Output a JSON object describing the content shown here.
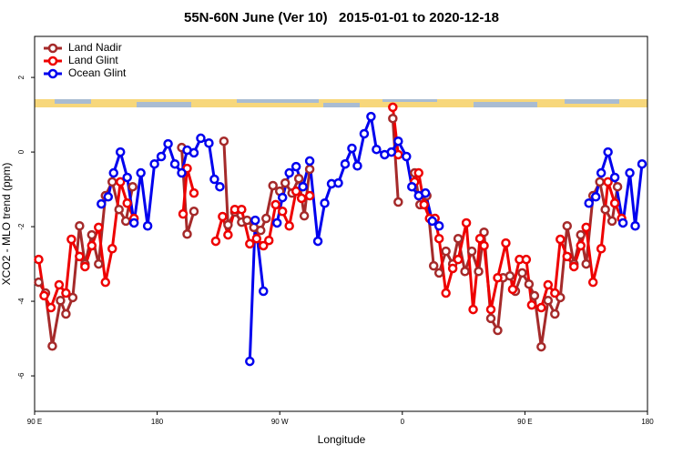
{
  "chart_data": {
    "type": "line",
    "title": "55N-60N June (Ver 10)   2015-01-01 to 2020-12-18",
    "x_label": "Longitude",
    "y_label": "XCO2 - MLO trend (ppm)",
    "xlim": [
      90,
      540
    ],
    "ylim": [
      -6.95,
      3.1
    ],
    "xticks": [
      {
        "value": 90,
        "label": "90 E"
      },
      180,
      {
        "value": 270,
        "label": "90 W"
      },
      {
        "value": 360,
        "label": "0"
      },
      {
        "value": 450,
        "label": "90 E"
      },
      {
        "value": 540,
        "label": "180"
      }
    ],
    "yticks": [
      -6,
      -4,
      -2,
      0,
      2
    ],
    "legend": "top-left",
    "series": [
      {
        "name": "Land Nadir",
        "color": "#a52a2a",
        "x": [
          93,
          98,
          103,
          109,
          113,
          118,
          123,
          127,
          132,
          137,
          142,
          147,
          152,
          157,
          162,
          null,
          198,
          202,
          207,
          null,
          229,
          232,
          237,
          242,
          246,
          251,
          256,
          260,
          265,
          270,
          274,
          279,
          284,
          288,
          292,
          null,
          353,
          357,
          null,
          369,
          373,
          378,
          383,
          387,
          392,
          397,
          401,
          406,
          411,
          416,
          420,
          425,
          430,
          434,
          439,
          443,
          448,
          453,
          457,
          462,
          467,
          472,
          476,
          481,
          486,
          491,
          495,
          500,
          505,
          509,
          514,
          518
        ],
        "values": [
          -3.49,
          -3.78,
          -5.2,
          -3.98,
          -4.34,
          -3.9,
          -1.98,
          -3.0,
          -2.22,
          -3.0,
          -1.17,
          -0.8,
          -1.54,
          -1.85,
          -0.93,
          null,
          0.12,
          -2.2,
          -1.59,
          null,
          0.29,
          -1.95,
          -1.61,
          -1.88,
          -1.83,
          -2.02,
          -2.1,
          -1.78,
          -0.9,
          -1.05,
          -0.83,
          -1.1,
          -0.71,
          -1.71,
          -0.46,
          null,
          0.9,
          -1.34,
          null,
          -0.56,
          -1.41,
          -1.17,
          -3.05,
          -3.24,
          -2.66,
          -3.0,
          -2.32,
          -3.2,
          -2.66,
          -3.2,
          -2.15,
          -4.46,
          -4.78,
          -3.37,
          -3.32,
          -3.73,
          -3.24,
          -3.54,
          -3.85,
          -5.22,
          -3.98,
          -4.34,
          -3.9,
          -1.98,
          -3.0,
          -2.22,
          -3.0,
          -1.17,
          -0.8,
          -1.54,
          -1.85,
          -0.93
        ]
      },
      {
        "name": "Land Glint",
        "color": "#ee0000",
        "x": [
          93,
          97,
          102,
          108,
          113,
          117,
          123,
          127,
          132,
          137,
          142,
          147,
          153,
          158,
          163,
          null,
          199,
          202,
          207,
          null,
          223,
          228,
          232,
          237,
          242,
          248,
          253,
          258,
          262,
          267,
          272,
          277,
          282,
          286,
          292,
          null,
          353,
          357,
          null,
          369,
          372,
          376,
          380,
          384,
          387,
          392,
          397,
          401,
          407,
          412,
          417,
          420,
          425,
          430,
          436,
          441,
          446,
          451,
          455,
          462,
          467,
          472,
          476,
          481,
          486,
          491,
          495,
          500,
          506,
          511,
          516,
          521
        ],
        "values": [
          -2.88,
          -3.85,
          -4.17,
          -3.56,
          -3.78,
          -2.34,
          -2.8,
          -3.07,
          -2.51,
          -2.02,
          -3.49,
          -2.59,
          -0.8,
          -1.37,
          -1.78,
          null,
          -1.66,
          -0.44,
          -1.1,
          null,
          -2.39,
          -1.73,
          -2.22,
          -1.54,
          -1.54,
          -2.46,
          -2.32,
          -2.51,
          -2.37,
          -1.41,
          -1.59,
          -1.98,
          -1.05,
          -1.24,
          -1.17,
          null,
          1.2,
          -0.07,
          null,
          -0.8,
          -0.56,
          -1.41,
          -1.78,
          -1.78,
          -2.32,
          -3.78,
          -3.12,
          -2.88,
          -1.9,
          -4.22,
          -2.32,
          -2.51,
          -4.22,
          -3.37,
          -2.44,
          -3.68,
          -2.88,
          -2.88,
          -4.1,
          -4.17,
          -3.56,
          -3.78,
          -2.34,
          -2.8,
          -3.07,
          -2.51,
          -2.02,
          -3.49,
          -2.59,
          -0.8,
          -1.37,
          -1.78
        ]
      },
      {
        "name": "Ocean Glint",
        "color": "#0000ee",
        "x": [
          139,
          144,
          148,
          153,
          158,
          163,
          168,
          173,
          178,
          183,
          188,
          193,
          198,
          202,
          207,
          212,
          218,
          222,
          226,
          null,
          248,
          252,
          258,
          null,
          268,
          272,
          277,
          282,
          287,
          292,
          298,
          303,
          308,
          313,
          318,
          323,
          327,
          332,
          337,
          341,
          347,
          352,
          357,
          363,
          367,
          372,
          377,
          382,
          387,
          null,
          497,
          502,
          506,
          511,
          516,
          522,
          527,
          531,
          536
        ],
        "values": [
          -1.39,
          -1.2,
          -0.56,
          0,
          -0.68,
          -1.9,
          -0.56,
          -1.98,
          -0.32,
          -0.12,
          0.22,
          -0.32,
          -0.56,
          0.05,
          -0.02,
          0.37,
          0.24,
          -0.73,
          -0.93,
          null,
          -5.61,
          -1.83,
          -3.73,
          null,
          -1.9,
          -1.22,
          -0.56,
          -0.39,
          -0.93,
          -0.24,
          -2.39,
          -1.37,
          -0.85,
          -0.83,
          -0.32,
          0.1,
          -0.37,
          0.49,
          0.95,
          0.07,
          -0.07,
          0,
          0.29,
          -0.12,
          -0.93,
          -1.17,
          -1.1,
          -1.85,
          -1.98,
          null,
          -1.37,
          -1.2,
          -0.56,
          0,
          -0.68,
          -1.9,
          -0.56,
          -1.98,
          -0.32
        ]
      }
    ]
  }
}
